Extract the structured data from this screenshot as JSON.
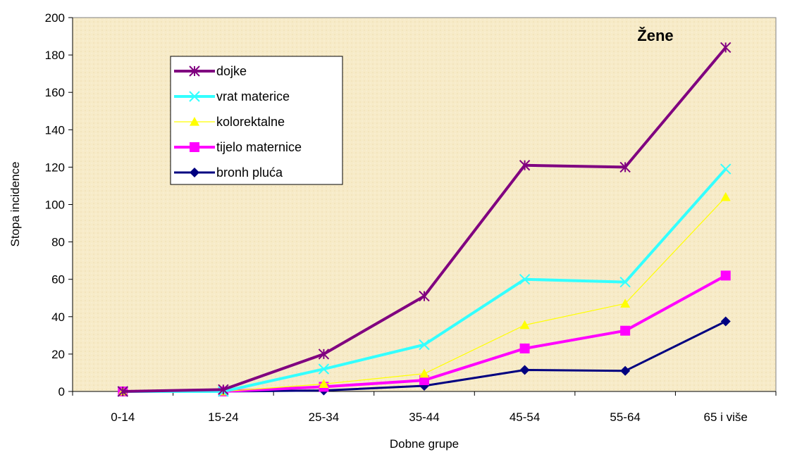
{
  "chart_data": {
    "type": "line",
    "title": "Žene",
    "xlabel": "Dobne grupe",
    "ylabel": "Stopa incidence",
    "categories": [
      "0-14",
      "15-24",
      "25-34",
      "35-44",
      "45-54",
      "55-64",
      "65 i više"
    ],
    "ylim": [
      0,
      200
    ],
    "yticks": [
      "0",
      "20",
      "40",
      "60",
      "80",
      "100",
      "120",
      "140",
      "160",
      "180",
      "200"
    ],
    "grid": false,
    "legend_position": "top-left",
    "background_color": "#f7ebc8",
    "series": [
      {
        "name": "dojke",
        "color": "#800080",
        "marker": "asterisk",
        "values": [
          0,
          1,
          20,
          51,
          121,
          120,
          184
        ]
      },
      {
        "name": "vrat materice",
        "color": "#33ffff",
        "marker": "x",
        "values": [
          0,
          0,
          12,
          25,
          60,
          58.5,
          119
        ]
      },
      {
        "name": "kolorektalne",
        "color": "#ffff00",
        "marker": "triangle",
        "values": [
          0,
          0,
          4,
          9.5,
          35.5,
          47,
          104
        ]
      },
      {
        "name": "tijelo maternice",
        "color": "#ff00ff",
        "marker": "square",
        "values": [
          0,
          0,
          2.5,
          6,
          23,
          32.5,
          62
        ]
      },
      {
        "name": "bronh pluća",
        "color": "#000080",
        "marker": "diamond",
        "values": [
          0,
          0,
          0.5,
          3,
          11.5,
          11,
          37.5
        ]
      }
    ]
  }
}
